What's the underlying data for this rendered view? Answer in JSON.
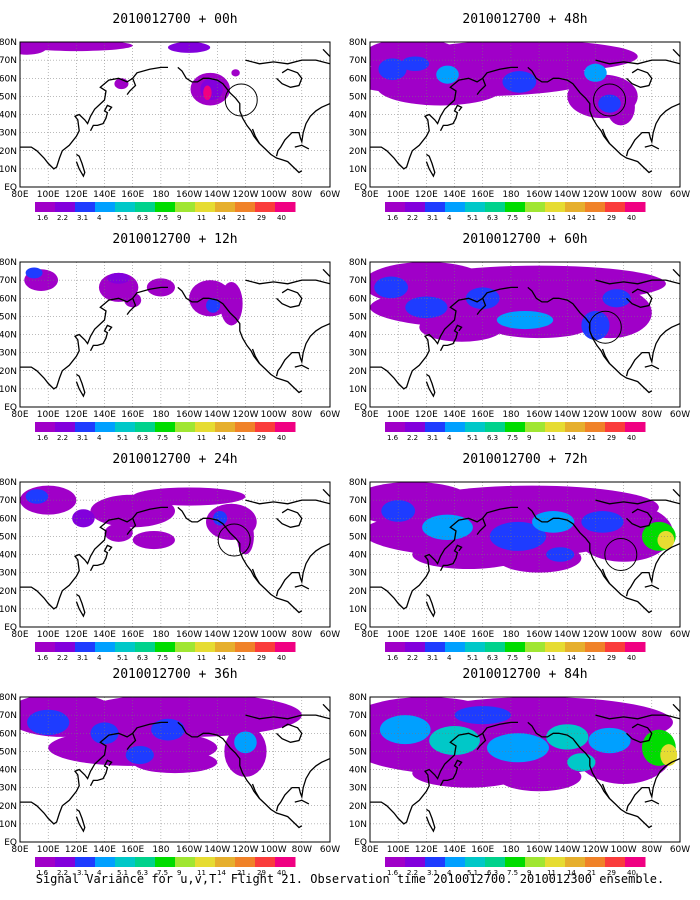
{
  "caption": "Signal Variance for u,v,T. Flight 21. Observation time 2010012700. 2010012300 ensemble.",
  "chart_data": {
    "type": "heatmap",
    "description_units": "map panels of signal variance",
    "colorbar": {
      "levels": [
        "1.6",
        "2.2",
        "3.1",
        "4",
        "5.1",
        "6.3",
        "7.5",
        "9",
        "11",
        "14",
        "21",
        "29",
        "40"
      ],
      "colors": [
        "#a000c8",
        "#8200dc",
        "#1e3cff",
        "#00a0ff",
        "#00c8c8",
        "#00d28c",
        "#00dc00",
        "#a0e632",
        "#e6dc32",
        "#e6af2d",
        "#f08228",
        "#fa3c3c",
        "#f00082"
      ]
    },
    "axes": {
      "x_ticks": [
        "80E",
        "100E",
        "120E",
        "140E",
        "160E",
        "180",
        "160W",
        "140W",
        "120W",
        "100W",
        "80W",
        "60W"
      ],
      "y_ticks": [
        "80N",
        "70N",
        "60N",
        "50N",
        "40N",
        "30N",
        "20N",
        "10N",
        "EQ"
      ]
    },
    "panels": [
      {
        "title": "2010012700 + 00h",
        "lead_hours": 0,
        "coverage": "minimal",
        "observation_circle": true
      },
      {
        "title": "2010012700 + 48h",
        "lead_hours": 48,
        "coverage": "moderate",
        "observation_circle": true
      },
      {
        "title": "2010012700 + 12h",
        "lead_hours": 12,
        "coverage": "low",
        "observation_circle": false
      },
      {
        "title": "2010012700 + 60h",
        "lead_hours": 60,
        "coverage": "moderate",
        "observation_circle": true
      },
      {
        "title": "2010012700 + 24h",
        "lead_hours": 24,
        "coverage": "low",
        "observation_circle": true
      },
      {
        "title": "2010012700 + 72h",
        "lead_hours": 72,
        "coverage": "high",
        "observation_circle": true
      },
      {
        "title": "2010012700 + 36h",
        "lead_hours": 36,
        "coverage": "moderate",
        "observation_circle": false
      },
      {
        "title": "2010012700 + 84h",
        "lead_hours": 84,
        "coverage": "high",
        "observation_circle": false
      }
    ]
  }
}
